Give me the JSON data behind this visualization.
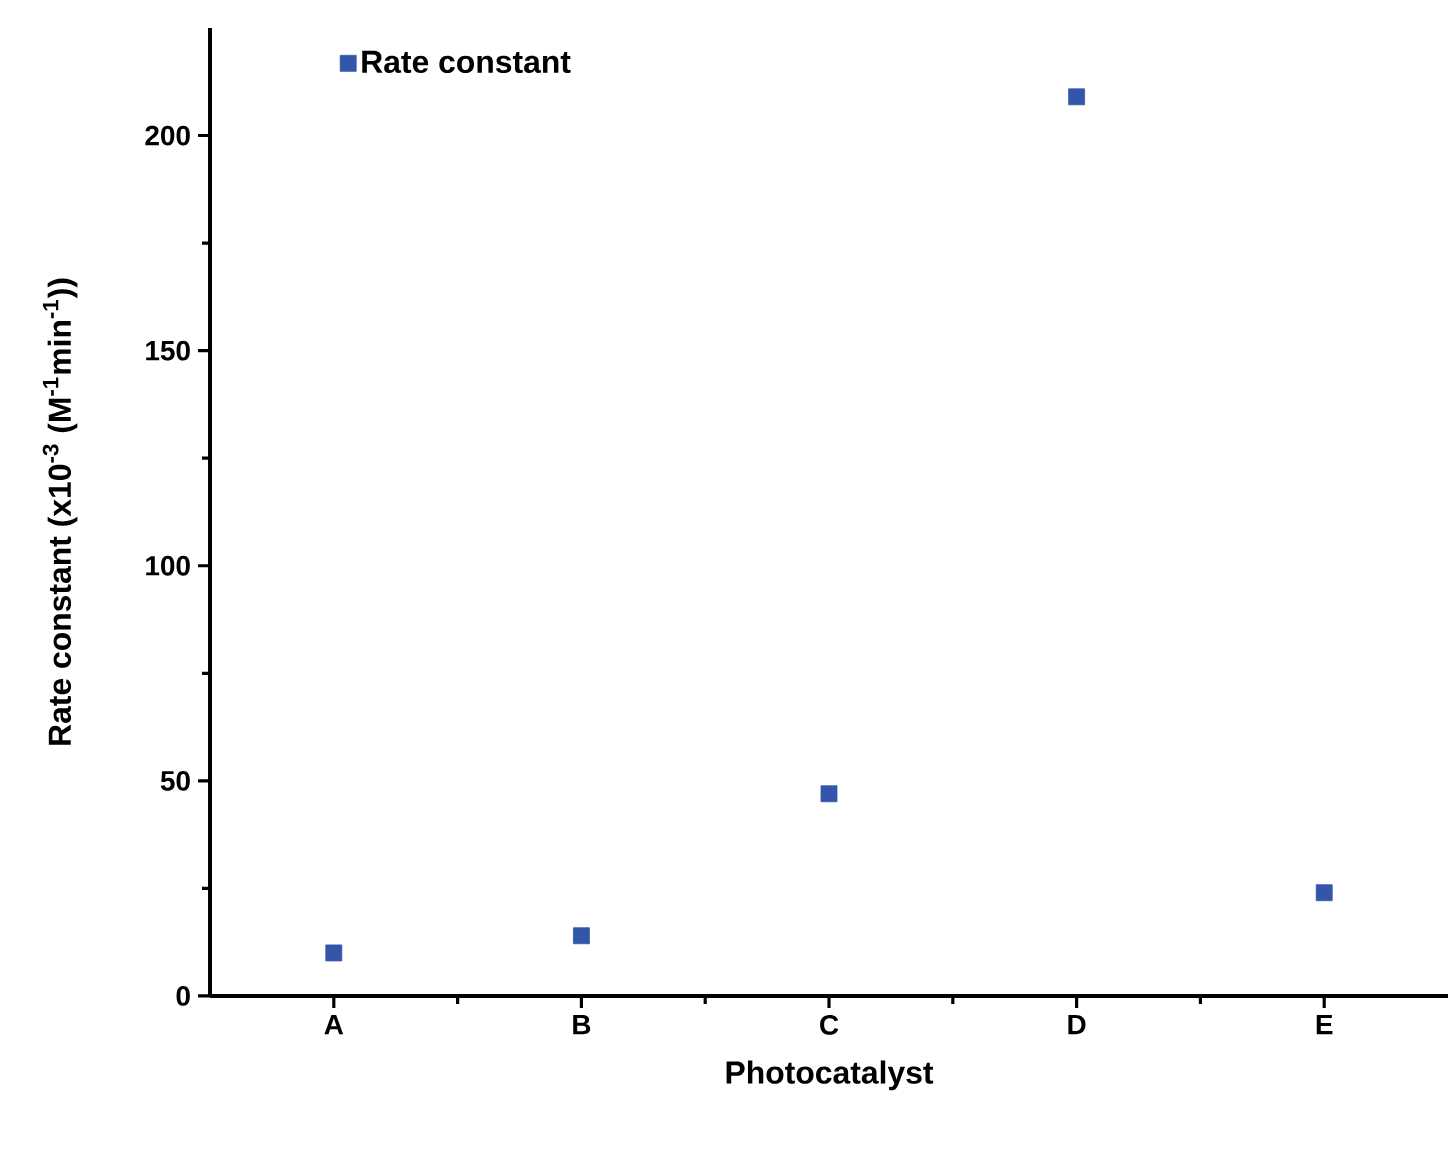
{
  "chart_data": {
    "type": "scatter",
    "xlabel": "Photocatalyst",
    "ylabel": "Rate constant (x10$^{-3}$ (M$^{-1}$min$^{-1}$))",
    "categories": [
      "A",
      "B",
      "C",
      "D",
      "E"
    ],
    "series": [
      {
        "name": "Rate constant",
        "color": "#3355aa",
        "values": [
          10,
          14,
          47,
          209,
          24
        ]
      }
    ],
    "ylim": [
      0,
      225
    ],
    "yticks": [
      0,
      50,
      100,
      150,
      200
    ],
    "marker": "square",
    "legend": "top left",
    "grid": false
  }
}
